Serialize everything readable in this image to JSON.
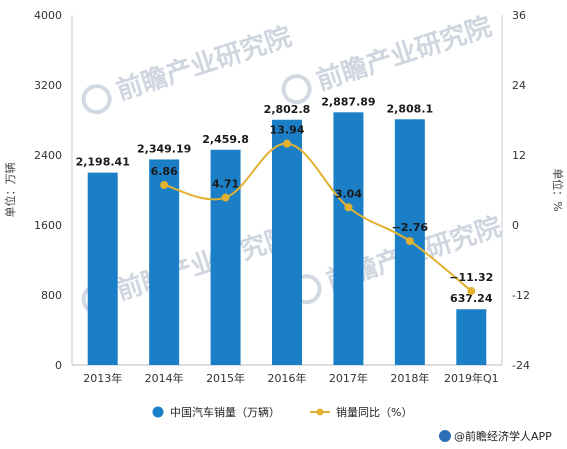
{
  "chart_data": {
    "type": "bar+line",
    "categories": [
      "2013年",
      "2014年",
      "2015年",
      "2016年",
      "2017年",
      "2018年",
      "2019年Q1"
    ],
    "series": [
      {
        "name": "中国汽车销量（万辆）",
        "type": "bar",
        "axis": "left",
        "values": [
          2198.41,
          2349.19,
          2459.8,
          2802.8,
          2887.89,
          2808.1,
          637.24
        ],
        "labels": [
          "2,198.41",
          "2,349.19",
          "2,459.8",
          "2,802.8",
          "2,887.89",
          "2,808.1",
          "637.24"
        ]
      },
      {
        "name": "销量同比（%）",
        "type": "line",
        "axis": "right",
        "values": [
          null,
          6.86,
          4.71,
          13.94,
          3.04,
          -2.76,
          -11.32
        ],
        "labels": [
          "",
          "6.86",
          "4.71",
          "13.94",
          "3.04",
          "−2.76",
          "−11.32"
        ]
      }
    ],
    "ylabel_left": "单位：万辆",
    "ylabel_right": "单位：%",
    "ylim_left": [
      0,
      4000
    ],
    "ylim_right": [
      -24,
      36
    ],
    "yticks_left": [
      "0",
      "800",
      "1600",
      "2400",
      "3200",
      "4000"
    ],
    "yticks_right": [
      "-24",
      "-12",
      "0",
      "12",
      "24",
      "36"
    ],
    "legend_position": "bottom",
    "grid": false,
    "colors": {
      "bar": "#1b7fc7",
      "line": "#e2b12f"
    }
  },
  "watermark": {
    "text": "前瞻产业研究院"
  },
  "brand": {
    "text": "@前瞻经济学人APP"
  }
}
